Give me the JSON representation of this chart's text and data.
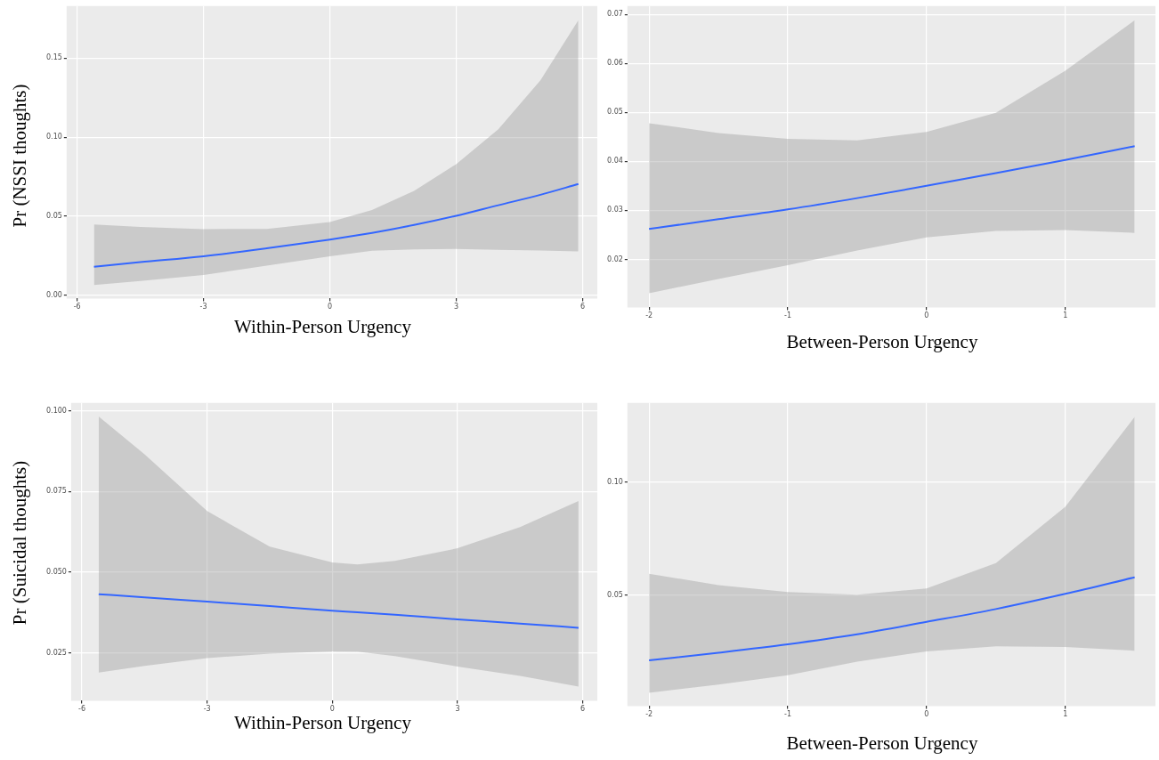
{
  "chart_data": [
    {
      "type": "line",
      "ylabel": "Pr (NSSI thoughts)",
      "xlabel": "Within-Person Urgency",
      "xlim": [
        -6.25,
        6.35
      ],
      "xticks": [
        -6,
        -3,
        0,
        3,
        6
      ],
      "ylim": [
        -0.002,
        0.183
      ],
      "yticks": [
        {
          "value": 0,
          "label": "0.00"
        },
        0.05,
        {
          "value": 0.1,
          "label": "0.10"
        },
        0.15
      ],
      "grid": true,
      "series": [
        {
          "color": "#3366ff",
          "x": [
            -5.6,
            -4.5,
            -3,
            -1.5,
            0,
            1,
            2,
            3,
            4,
            5,
            5.9
          ],
          "values": [
            0.0181,
            0.021,
            0.0247,
            0.0297,
            0.0353,
            0.0395,
            0.0445,
            0.0503,
            0.057,
            0.0636,
            0.0704
          ],
          "lower": [
            0.0066,
            0.009,
            0.0128,
            0.0188,
            0.0247,
            0.0282,
            0.029,
            0.0293,
            0.0288,
            0.0283,
            0.0278
          ],
          "upper": [
            0.0448,
            0.0433,
            0.0419,
            0.042,
            0.0463,
            0.054,
            0.066,
            0.083,
            0.105,
            0.136,
            0.174
          ]
        }
      ]
    },
    {
      "type": "line",
      "xlabel": "Between-Person Urgency",
      "xlim": [
        -2.156,
        1.65
      ],
      "xticks": [
        -2,
        -1,
        0,
        1
      ],
      "ylim": [
        0.0102,
        0.0717
      ],
      "yticks": [
        0.02,
        0.03,
        0.04,
        0.05,
        0.06,
        0.07
      ],
      "grid": true,
      "series": [
        {
          "color": "#3366ff",
          "x": [
            -2,
            -1.5,
            -1,
            -0.5,
            0,
            0.5,
            1,
            1.5
          ],
          "values": [
            0.0262,
            0.0282,
            0.0302,
            0.0325,
            0.035,
            0.0376,
            0.0403,
            0.0431
          ],
          "lower": [
            0.0131,
            0.016,
            0.0188,
            0.0218,
            0.0245,
            0.0258,
            0.026,
            0.0254
          ],
          "upper": [
            0.0478,
            0.0458,
            0.0446,
            0.0443,
            0.046,
            0.0499,
            0.0585,
            0.0688
          ]
        }
      ]
    },
    {
      "type": "line",
      "ylabel": "Pr (Suicidal thoughts)",
      "xlabel": "Within-Person Urgency",
      "xlim": [
        -6.26,
        6.35
      ],
      "xticks": [
        -6,
        -3,
        0,
        3,
        6
      ],
      "ylim": [
        0.0102,
        0.1024
      ],
      "yticks": [
        0.025,
        {
          "value": 0.05,
          "label": "0.050"
        },
        0.075,
        {
          "value": 0.1,
          "label": "0.100"
        }
      ],
      "grid": true,
      "series": [
        {
          "color": "#3366ff",
          "x": [
            -5.6,
            -4.5,
            -3,
            -1.5,
            0,
            0.6,
            1.5,
            3,
            4.5,
            5.9
          ],
          "values": [
            0.0432,
            0.0422,
            0.0409,
            0.0395,
            0.0381,
            0.0376,
            0.0368,
            0.0354,
            0.0341,
            0.0328
          ],
          "lower": [
            0.0189,
            0.021,
            0.0234,
            0.0248,
            0.0255,
            0.0254,
            0.024,
            0.0208,
            0.0179,
            0.0146
          ],
          "upper": [
            0.0982,
            0.0865,
            0.0689,
            0.0579,
            0.053,
            0.0524,
            0.0535,
            0.0574,
            0.064,
            0.072
          ]
        }
      ]
    },
    {
      "type": "line",
      "xlabel": "Between-Person Urgency",
      "xlim": [
        -2.156,
        1.65
      ],
      "xticks": [
        -2,
        -1,
        0,
        1
      ],
      "ylim": [
        0.001,
        0.135
      ],
      "yticks": [
        0.05,
        {
          "value": 0.1,
          "label": "0.10"
        }
      ],
      "grid": true,
      "series": [
        {
          "color": "#3366ff",
          "x": [
            -2,
            -1.5,
            -1,
            -0.5,
            0,
            0.5,
            1,
            1.5
          ],
          "values": [
            0.0212,
            0.0246,
            0.0283,
            0.0327,
            0.0382,
            0.0439,
            0.0506,
            0.0579
          ],
          "lower": [
            0.0069,
            0.0105,
            0.0146,
            0.0206,
            0.0252,
            0.0274,
            0.0271,
            0.0255
          ],
          "upper": [
            0.0595,
            0.0545,
            0.0514,
            0.0502,
            0.053,
            0.0642,
            0.0891,
            0.1288
          ]
        }
      ]
    }
  ]
}
